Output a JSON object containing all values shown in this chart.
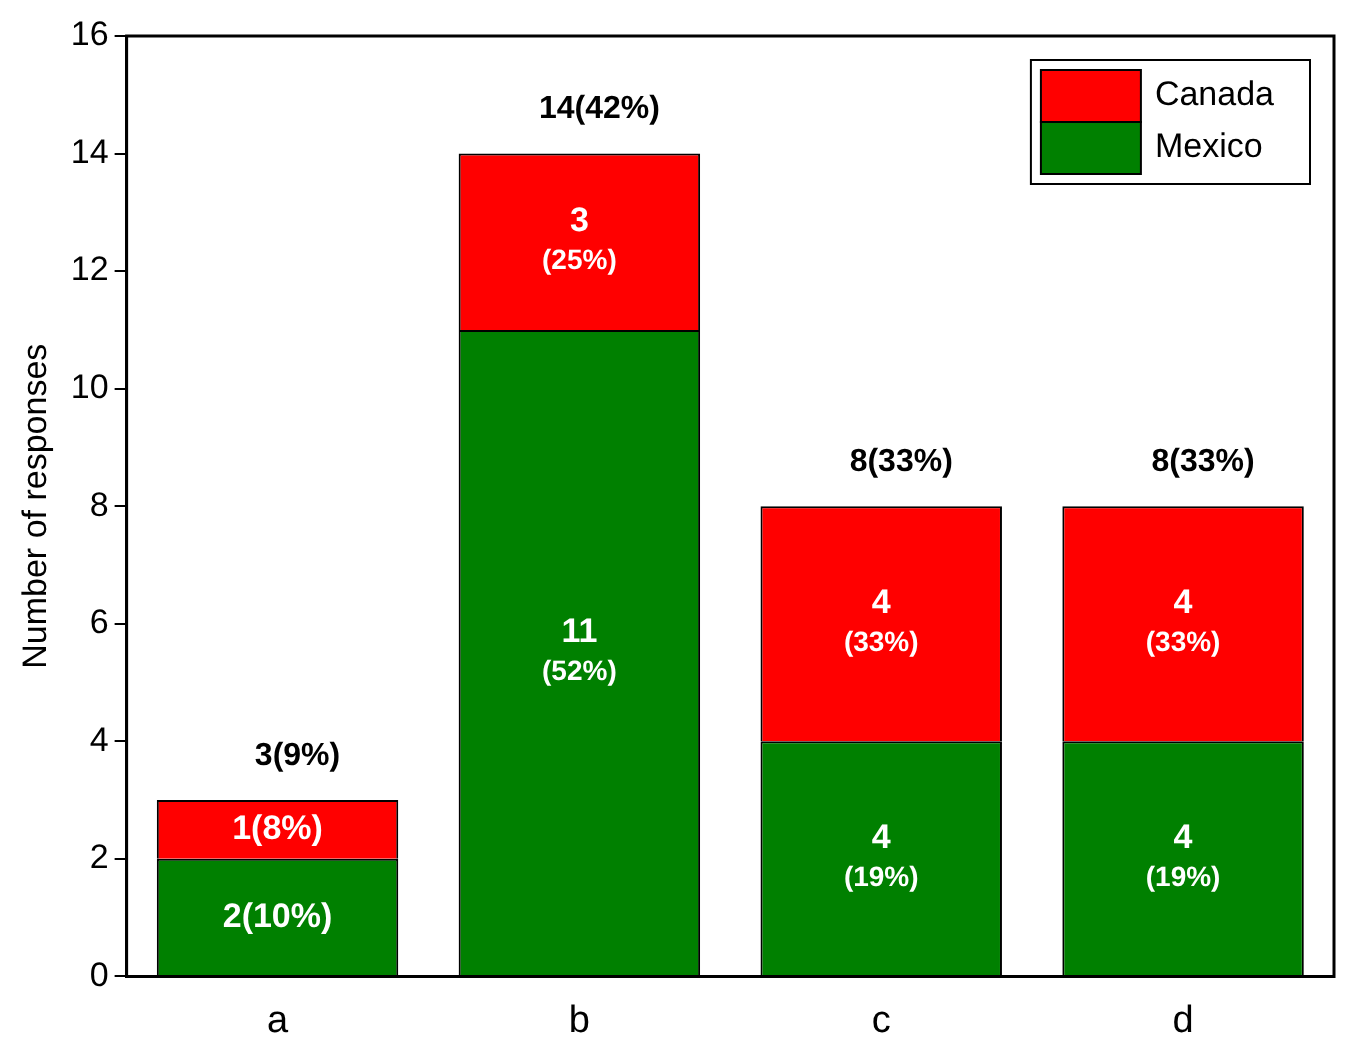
{
  "chart_data": {
    "type": "bar",
    "stacked": true,
    "ylabel": "Number of responses",
    "categories": [
      "a",
      "b",
      "c",
      "d"
    ],
    "series": [
      {
        "name": "Mexico",
        "color": "#008000",
        "values": [
          2,
          11,
          4,
          4
        ],
        "value_labels": [
          "2(10%)",
          "11 (52%)",
          "4 (19%)",
          "4 (19%)"
        ]
      },
      {
        "name": "Canada",
        "color": "#ff0000",
        "values": [
          1,
          3,
          4,
          4
        ],
        "value_labels": [
          "1(8%)",
          "3 (25%)",
          "4 (33%)",
          "4 (33%)"
        ]
      }
    ],
    "totals": [
      "3(9%)",
      "14(42%)",
      "8(33%)",
      "8(33%)"
    ],
    "ylim": [
      0,
      16
    ],
    "yticks": [
      0,
      2,
      4,
      6,
      8,
      10,
      12,
      14,
      16
    ],
    "grid": false,
    "legend": "top right"
  }
}
